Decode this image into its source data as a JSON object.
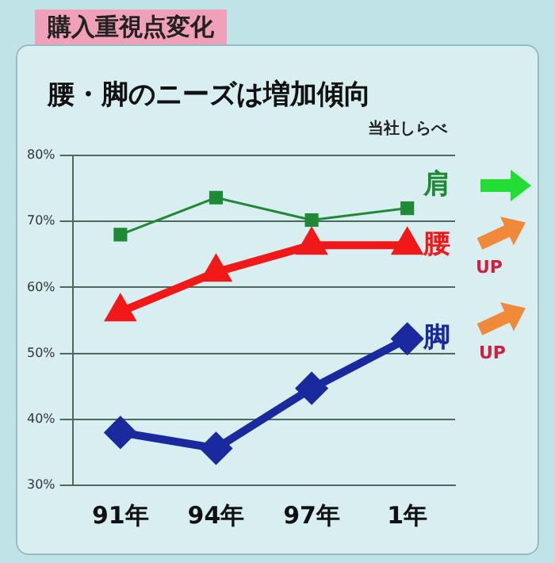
{
  "chart_data": {
    "type": "line",
    "title": "購入重視点変化",
    "subtitle": "腰・脚のニーズは増加傾向",
    "annotations": [
      "当社しらべ",
      "UP",
      "UP"
    ],
    "categories": [
      "91年",
      "94年",
      "97年",
      "1年"
    ],
    "series": [
      {
        "name": "肩",
        "color": "#1f8a35",
        "marker": "square",
        "values": [
          68,
          73.6,
          70.2,
          72
        ]
      },
      {
        "name": "腰",
        "color": "#f01818",
        "marker": "triangle",
        "values": [
          56.3,
          62.3,
          66.4,
          66.4
        ]
      },
      {
        "name": "脚",
        "color": "#1a2a9e",
        "marker": "diamond",
        "values": [
          38,
          35.6,
          44.7,
          52.2
        ]
      }
    ],
    "ylim": [
      30,
      80
    ],
    "yticks": [
      {
        "value": 30,
        "label": "30%"
      },
      {
        "value": 40,
        "label": "40%"
      },
      {
        "value": 50,
        "label": "50%"
      },
      {
        "value": 60,
        "label": "60%"
      },
      {
        "value": 70,
        "label": "70%"
      },
      {
        "value": 80,
        "label": "80%"
      }
    ],
    "grid": "y",
    "legend": false
  }
}
